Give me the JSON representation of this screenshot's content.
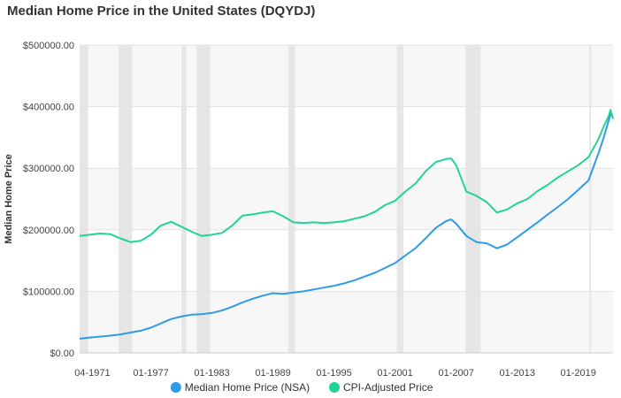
{
  "chart_data": {
    "type": "line",
    "title": "Median Home Price in the United States (DQYDJ)",
    "xlabel": "",
    "ylabel": "Median Home Price",
    "ylim": [
      0,
      500000
    ],
    "yticks": [
      0,
      100000,
      200000,
      300000,
      400000,
      500000
    ],
    "ytick_labels": [
      "$0.00",
      "$100000.00",
      "$200000.00",
      "$300000.00",
      "$400000.00",
      "$500000.00"
    ],
    "xlim": [
      "1970-01",
      "2022-06"
    ],
    "xticks": [
      "1971-04",
      "1977-01",
      "1983-01",
      "1989-01",
      "1995-01",
      "2001-01",
      "2007-01",
      "2013-01",
      "2019-01"
    ],
    "xtick_labels": [
      "04-1971",
      "01-1977",
      "01-1983",
      "01-1989",
      "01-1995",
      "01-2001",
      "01-2007",
      "01-2013",
      "01-2019"
    ],
    "grid": "horizontal",
    "legend": "bottom",
    "recession_bands": [
      [
        "1970-01",
        "1970-11"
      ],
      [
        "1973-11",
        "1975-03"
      ],
      [
        "1980-01",
        "1980-07"
      ],
      [
        "1981-07",
        "1982-11"
      ],
      [
        "1990-07",
        "1991-03"
      ],
      [
        "2001-03",
        "2001-11"
      ],
      [
        "2007-12",
        "2009-06"
      ],
      [
        "2020-02",
        "2020-04"
      ]
    ],
    "series": [
      {
        "name": "Median Home Price (NSA)",
        "color": "#2f9be8",
        "x": [
          "1970-01",
          "1971-01",
          "1972-01",
          "1973-01",
          "1974-01",
          "1975-01",
          "1976-01",
          "1977-01",
          "1978-01",
          "1979-01",
          "1980-01",
          "1981-01",
          "1982-01",
          "1983-01",
          "1984-01",
          "1985-01",
          "1986-01",
          "1987-01",
          "1988-01",
          "1989-01",
          "1990-01",
          "1991-01",
          "1992-01",
          "1993-01",
          "1994-01",
          "1995-01",
          "1996-01",
          "1997-01",
          "1998-01",
          "1999-01",
          "2000-01",
          "2001-01",
          "2002-01",
          "2003-01",
          "2004-01",
          "2005-01",
          "2006-01",
          "2006-07",
          "2007-01",
          "2008-01",
          "2009-01",
          "2010-01",
          "2011-01",
          "2012-01",
          "2013-01",
          "2014-01",
          "2015-01",
          "2016-01",
          "2017-01",
          "2018-01",
          "2019-01",
          "2020-01",
          "2021-01",
          "2021-07",
          "2022-01",
          "2022-03",
          "2022-06"
        ],
        "values": [
          23000,
          25000,
          26500,
          28000,
          30000,
          33000,
          36000,
          41000,
          48000,
          55000,
          59000,
          62000,
          63000,
          65000,
          69000,
          75000,
          82000,
          88000,
          93000,
          97000,
          96000,
          98000,
          100000,
          103000,
          106000,
          109000,
          113000,
          118000,
          124000,
          130000,
          138000,
          146000,
          158000,
          170000,
          186000,
          203000,
          214000,
          217000,
          210000,
          190000,
          180000,
          178000,
          170000,
          176000,
          188000,
          200000,
          212000,
          225000,
          237000,
          250000,
          265000,
          280000,
          325000,
          350000,
          378000,
          388000,
          382000
        ]
      },
      {
        "name": "CPI-Adjusted Price",
        "color": "#21d495",
        "x": [
          "1970-01",
          "1971-01",
          "1972-01",
          "1973-01",
          "1974-01",
          "1975-01",
          "1976-01",
          "1977-01",
          "1978-01",
          "1979-01",
          "1980-01",
          "1981-01",
          "1982-01",
          "1983-01",
          "1984-01",
          "1985-01",
          "1986-01",
          "1987-01",
          "1988-01",
          "1989-01",
          "1990-01",
          "1991-01",
          "1992-01",
          "1993-01",
          "1994-01",
          "1995-01",
          "1996-01",
          "1997-01",
          "1998-01",
          "1999-01",
          "2000-01",
          "2001-01",
          "2002-01",
          "2003-01",
          "2004-01",
          "2005-01",
          "2006-01",
          "2006-07",
          "2007-01",
          "2008-01",
          "2009-01",
          "2010-01",
          "2011-01",
          "2012-01",
          "2013-01",
          "2014-01",
          "2015-01",
          "2016-01",
          "2017-01",
          "2018-01",
          "2019-01",
          "2020-01",
          "2021-01",
          "2021-07",
          "2022-01",
          "2022-03",
          "2022-06"
        ],
        "values": [
          190000,
          192000,
          194000,
          193000,
          186000,
          180000,
          182000,
          192000,
          207000,
          213000,
          205000,
          197000,
          190000,
          192000,
          195000,
          207000,
          223000,
          225000,
          228000,
          230000,
          222000,
          212000,
          211000,
          212000,
          211000,
          212000,
          214000,
          218000,
          222000,
          229000,
          240000,
          247000,
          262000,
          275000,
          295000,
          310000,
          315000,
          316000,
          305000,
          262000,
          255000,
          245000,
          228000,
          233000,
          243000,
          250000,
          263000,
          273000,
          285000,
          295000,
          305000,
          318000,
          348000,
          368000,
          385000,
          395000,
          380000
        ]
      }
    ]
  }
}
